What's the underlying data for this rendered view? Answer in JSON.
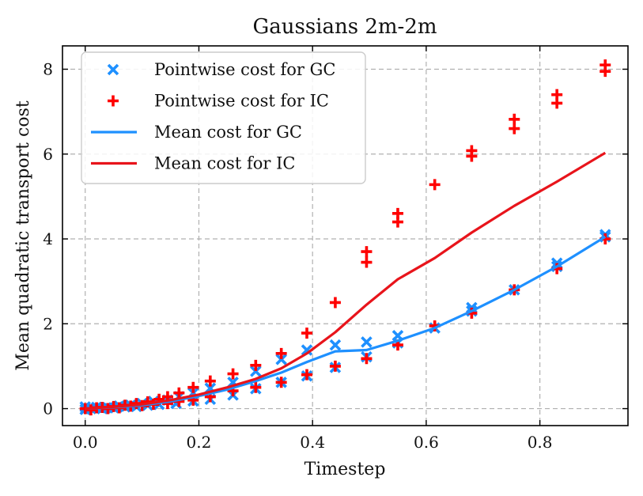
{
  "chart_data": {
    "type": "scatter",
    "title": "Gaussians 2m-2m",
    "xlabel": "Timestep",
    "ylabel": "Mean quadratic transport cost",
    "xlim": [
      -0.04,
      0.955
    ],
    "ylim": [
      -0.4,
      8.55
    ],
    "xticks": [
      0.0,
      0.2,
      0.4,
      0.6,
      0.8
    ],
    "xtick_labels": [
      "0.0",
      "0.2",
      "0.4",
      "0.6",
      "0.8"
    ],
    "yticks": [
      0,
      2,
      4,
      6,
      8
    ],
    "ytick_labels": [
      "0",
      "2",
      "4",
      "6",
      "8"
    ],
    "grid": true,
    "legend_position": "top-left",
    "series": [
      {
        "name": "Pointwise cost for GC",
        "kind": "scatter",
        "marker": "x",
        "color": "#1e90ff",
        "points": [
          [
            0.0,
            -0.02
          ],
          [
            0.0,
            0.04
          ],
          [
            0.01,
            0.0
          ],
          [
            0.02,
            0.03
          ],
          [
            0.03,
            0.0
          ],
          [
            0.04,
            0.02
          ],
          [
            0.05,
            0.02
          ],
          [
            0.06,
            0.06
          ],
          [
            0.07,
            0.04
          ],
          [
            0.08,
            0.08
          ],
          [
            0.09,
            0.05
          ],
          [
            0.1,
            0.12
          ],
          [
            0.11,
            0.08
          ],
          [
            0.12,
            0.17
          ],
          [
            0.13,
            0.1
          ],
          [
            0.145,
            0.2
          ],
          [
            0.16,
            0.12
          ],
          [
            0.165,
            0.28
          ],
          [
            0.19,
            0.18
          ],
          [
            0.19,
            0.37
          ],
          [
            0.22,
            0.22
          ],
          [
            0.22,
            0.48
          ],
          [
            0.26,
            0.32
          ],
          [
            0.26,
            0.62
          ],
          [
            0.3,
            0.47
          ],
          [
            0.3,
            0.88
          ],
          [
            0.345,
            0.62
          ],
          [
            0.345,
            1.16
          ],
          [
            0.39,
            0.77
          ],
          [
            0.39,
            1.38
          ],
          [
            0.44,
            0.97
          ],
          [
            0.44,
            1.5
          ],
          [
            0.495,
            1.22
          ],
          [
            0.495,
            1.57
          ],
          [
            0.55,
            1.55
          ],
          [
            0.55,
            1.72
          ],
          [
            0.615,
            1.9
          ],
          [
            0.68,
            2.3
          ],
          [
            0.68,
            2.38
          ],
          [
            0.755,
            2.8
          ],
          [
            0.83,
            3.35
          ],
          [
            0.83,
            3.43
          ],
          [
            0.915,
            4.05
          ],
          [
            0.915,
            4.1
          ]
        ]
      },
      {
        "name": "Pointwise cost for IC",
        "kind": "scatter",
        "marker": "+",
        "color": "#ff0000",
        "points": [
          [
            0.0,
            0.0
          ],
          [
            0.01,
            -0.03
          ],
          [
            0.02,
            0.02
          ],
          [
            0.03,
            0.03
          ],
          [
            0.04,
            0.0
          ],
          [
            0.05,
            0.05
          ],
          [
            0.06,
            0.02
          ],
          [
            0.07,
            0.08
          ],
          [
            0.08,
            0.06
          ],
          [
            0.09,
            0.12
          ],
          [
            0.1,
            0.07
          ],
          [
            0.11,
            0.16
          ],
          [
            0.12,
            0.1
          ],
          [
            0.13,
            0.22
          ],
          [
            0.145,
            0.12
          ],
          [
            0.145,
            0.28
          ],
          [
            0.165,
            0.17
          ],
          [
            0.165,
            0.37
          ],
          [
            0.19,
            0.2
          ],
          [
            0.19,
            0.5
          ],
          [
            0.22,
            0.28
          ],
          [
            0.22,
            0.65
          ],
          [
            0.26,
            0.42
          ],
          [
            0.26,
            0.82
          ],
          [
            0.3,
            0.5
          ],
          [
            0.3,
            1.02
          ],
          [
            0.345,
            0.62
          ],
          [
            0.345,
            1.3
          ],
          [
            0.39,
            0.8
          ],
          [
            0.39,
            1.78
          ],
          [
            0.44,
            1.0
          ],
          [
            0.44,
            2.5
          ],
          [
            0.495,
            1.18
          ],
          [
            0.495,
            3.45
          ],
          [
            0.495,
            3.7
          ],
          [
            0.55,
            1.5
          ],
          [
            0.55,
            4.4
          ],
          [
            0.55,
            4.6
          ],
          [
            0.615,
            1.95
          ],
          [
            0.615,
            5.28
          ],
          [
            0.68,
            2.25
          ],
          [
            0.68,
            5.95
          ],
          [
            0.68,
            6.08
          ],
          [
            0.755,
            2.8
          ],
          [
            0.755,
            6.6
          ],
          [
            0.755,
            6.82
          ],
          [
            0.83,
            3.3
          ],
          [
            0.83,
            7.2
          ],
          [
            0.83,
            7.4
          ],
          [
            0.915,
            4.0
          ],
          [
            0.915,
            7.95
          ],
          [
            0.915,
            8.1
          ]
        ]
      },
      {
        "name": "Mean cost for GC",
        "kind": "line",
        "color": "#1e90ff",
        "x": [
          0.0,
          0.05,
          0.1,
          0.15,
          0.2,
          0.25,
          0.3,
          0.345,
          0.39,
          0.44,
          0.495,
          0.55,
          0.615,
          0.68,
          0.755,
          0.83,
          0.915
        ],
        "y": [
          0.0,
          0.03,
          0.08,
          0.17,
          0.3,
          0.45,
          0.65,
          0.85,
          1.1,
          1.35,
          1.38,
          1.6,
          1.9,
          2.3,
          2.8,
          3.35,
          4.05
        ]
      },
      {
        "name": "Mean cost for IC",
        "kind": "line",
        "color": "#e8141b",
        "x": [
          0.0,
          0.05,
          0.1,
          0.15,
          0.2,
          0.25,
          0.3,
          0.345,
          0.39,
          0.44,
          0.495,
          0.55,
          0.615,
          0.68,
          0.755,
          0.83,
          0.915
        ],
        "y": [
          0.0,
          0.04,
          0.1,
          0.2,
          0.33,
          0.5,
          0.7,
          0.95,
          1.3,
          1.8,
          2.45,
          3.05,
          3.55,
          4.15,
          4.78,
          5.35,
          6.03
        ]
      }
    ]
  }
}
